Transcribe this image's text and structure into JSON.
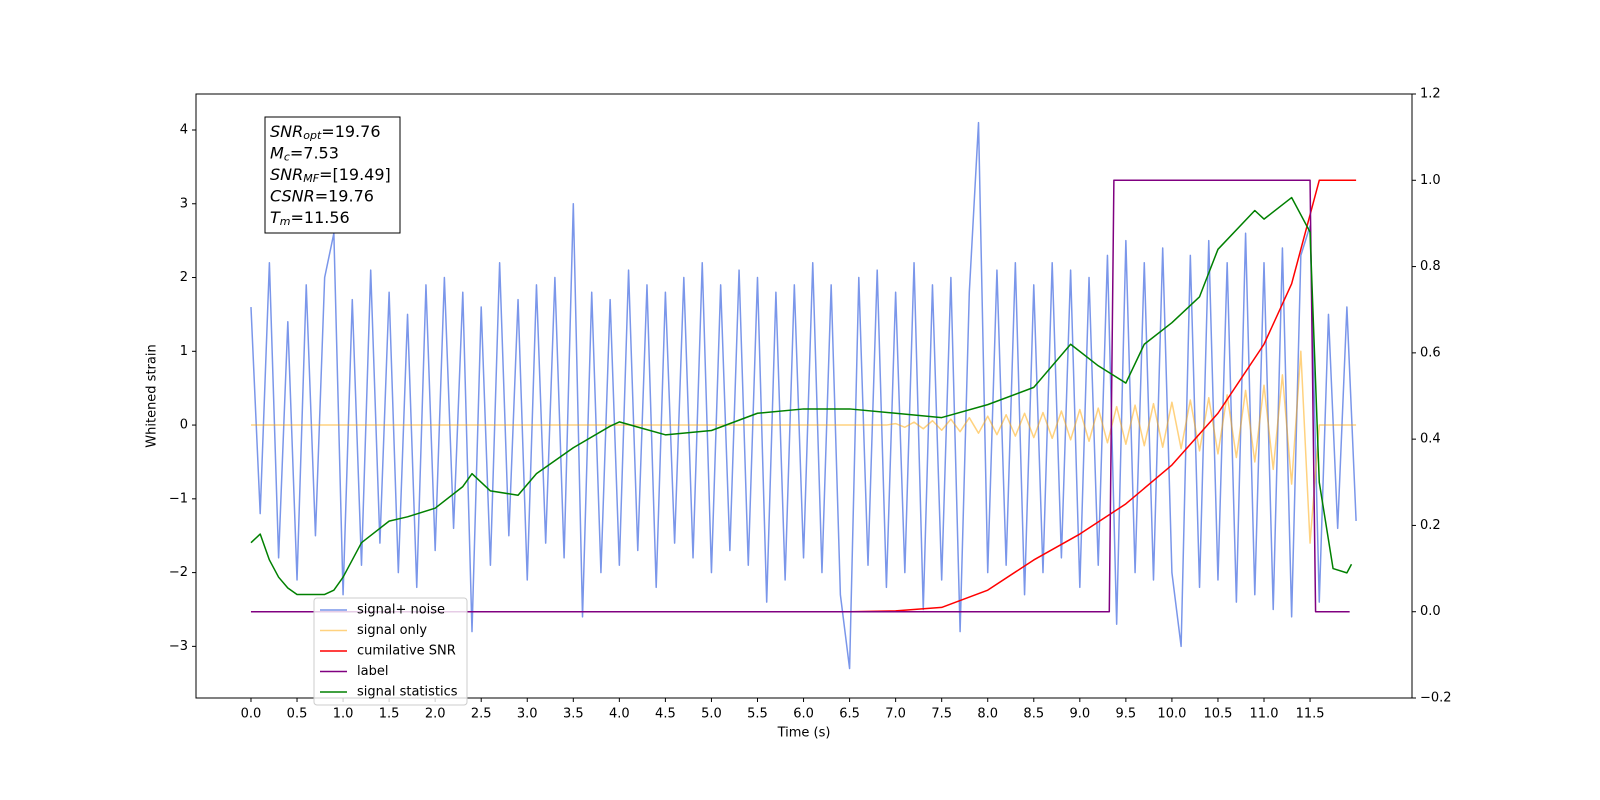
{
  "chart_data": {
    "type": "line",
    "xlabel": "Time (s)",
    "ylabel": "Whitened strain",
    "xlim": [
      -0.597,
      12.607
    ],
    "ylim": [
      -3.7,
      4.488
    ],
    "y2lim": [
      -0.2,
      1.2
    ],
    "xticks": [
      {
        "value": 0,
        "label": "0.0"
      },
      0.5,
      {
        "value": 1,
        "label": "1.0"
      },
      1.5,
      {
        "value": 2,
        "label": "2.0"
      },
      2.5,
      {
        "value": 3,
        "label": "3.0"
      },
      3.5,
      {
        "value": 4,
        "label": "4.0"
      },
      4.5,
      {
        "value": 5,
        "label": "5.0"
      },
      5.5,
      {
        "value": 6,
        "label": "6.0"
      },
      6.5,
      {
        "value": 7,
        "label": "7.0"
      },
      7.5,
      {
        "value": 8,
        "label": "8.0"
      },
      8.5,
      {
        "value": 9,
        "label": "9.0"
      },
      9.5,
      {
        "value": 10,
        "label": "10.0"
      },
      10.5,
      {
        "value": 11,
        "label": "11.0"
      },
      11.5
    ],
    "yticks": [
      {
        "value": -3,
        "label": "−3"
      },
      {
        "value": -2,
        "label": "−2"
      },
      {
        "value": -1,
        "label": "−1"
      },
      0,
      1,
      2,
      3,
      4
    ],
    "y2ticks": [
      {
        "value": -0.2,
        "label": "−0.2"
      },
      {
        "value": 0,
        "label": "0.0"
      },
      0.2,
      0.4,
      0.6,
      0.8,
      {
        "value": 1,
        "label": "1.0"
      },
      1.2
    ],
    "grid": false,
    "annotation": [
      {
        "base": "SNR",
        "sub": "opt",
        "rest": "=19.76"
      },
      {
        "base": "M",
        "sub": "c",
        "rest": "=7.53"
      },
      {
        "base": "SNR",
        "sub": "MF",
        "rest": "=[19.49]"
      },
      {
        "base": "CSNR",
        "sub": "",
        "rest": "=19.76"
      },
      {
        "base": "T",
        "sub": "m",
        "rest": "=11.56"
      }
    ],
    "series": [
      {
        "name": "signal+ noise",
        "color": "#4169e1",
        "alpha": 0.7,
        "axis": "y",
        "x": [
          0.0,
          0.1,
          0.2,
          0.3,
          0.4,
          0.5,
          0.6,
          0.7,
          0.8,
          0.9,
          1.0,
          1.1,
          1.2,
          1.3,
          1.4,
          1.5,
          1.6,
          1.7,
          1.8,
          1.9,
          2.0,
          2.1,
          2.2,
          2.3,
          2.4,
          2.5,
          2.6,
          2.7,
          2.8,
          2.9,
          3.0,
          3.1,
          3.2,
          3.3,
          3.4,
          3.5,
          3.6,
          3.7,
          3.8,
          3.9,
          4.0,
          4.1,
          4.2,
          4.3,
          4.4,
          4.5,
          4.6,
          4.7,
          4.8,
          4.9,
          5.0,
          5.1,
          5.2,
          5.3,
          5.4,
          5.5,
          5.6,
          5.7,
          5.8,
          5.9,
          6.0,
          6.1,
          6.2,
          6.3,
          6.4,
          6.5,
          6.6,
          6.7,
          6.8,
          6.9,
          7.0,
          7.1,
          7.2,
          7.3,
          7.4,
          7.5,
          7.6,
          7.7,
          7.8,
          7.9,
          8.0,
          8.1,
          8.2,
          8.3,
          8.4,
          8.5,
          8.6,
          8.7,
          8.8,
          8.9,
          9.0,
          9.1,
          9.2,
          9.3,
          9.4,
          9.5,
          9.6,
          9.7,
          9.8,
          9.9,
          10.0,
          10.1,
          10.2,
          10.3,
          10.4,
          10.5,
          10.6,
          10.7,
          10.8,
          10.9,
          11.0,
          11.1,
          11.2,
          11.3,
          11.4,
          11.5,
          11.6,
          11.7,
          11.8,
          11.9,
          12.0
        ],
        "values": [
          1.6,
          -1.2,
          2.2,
          -1.8,
          1.4,
          -2.1,
          1.9,
          -1.5,
          2.0,
          2.6,
          -2.3,
          1.7,
          -1.9,
          2.1,
          -1.6,
          1.8,
          -2.0,
          1.5,
          -2.2,
          1.9,
          -1.7,
          2.0,
          -1.4,
          1.8,
          -2.8,
          1.6,
          -1.9,
          2.2,
          -1.5,
          1.7,
          -2.1,
          1.9,
          -1.6,
          2.0,
          -1.8,
          3.0,
          -2.6,
          1.8,
          -2.0,
          1.7,
          -1.9,
          2.1,
          -1.7,
          1.9,
          -2.2,
          1.8,
          -1.6,
          2.0,
          -1.8,
          2.2,
          -2.0,
          1.9,
          -1.7,
          2.1,
          -1.9,
          2.0,
          -2.4,
          1.8,
          -2.1,
          1.9,
          -1.8,
          2.2,
          -2.0,
          1.9,
          -2.3,
          -3.3,
          2.0,
          -1.9,
          2.1,
          -2.2,
          1.8,
          -2.0,
          2.2,
          -2.5,
          1.9,
          -2.1,
          2.0,
          -2.8,
          1.8,
          4.1,
          -2.0,
          2.1,
          -1.9,
          2.2,
          -2.3,
          1.9,
          -2.0,
          2.2,
          -1.8,
          2.1,
          -2.2,
          2.0,
          -1.9,
          2.3,
          -2.7,
          2.5,
          -2.0,
          2.2,
          -2.1,
          2.4,
          -2.0,
          -3.0,
          2.3,
          -2.2,
          2.5,
          -2.1,
          2.2,
          -2.4,
          2.6,
          -2.3,
          2.2,
          -2.5,
          2.4,
          -2.6,
          2.3,
          2.7,
          -2.4,
          1.5,
          -1.4,
          1.6,
          -1.3
        ]
      },
      {
        "name": "signal only",
        "color": "#ffa500",
        "alpha": 0.5,
        "axis": "y",
        "x": [
          0.0,
          0.1,
          0.2,
          0.3,
          0.4,
          0.5,
          0.6,
          0.7,
          0.8,
          0.9,
          1.0,
          1.1,
          1.2,
          1.3,
          1.4,
          1.5,
          1.6,
          1.7,
          1.8,
          1.9,
          2.0,
          2.1,
          2.2,
          2.3,
          2.4,
          2.5,
          2.6,
          2.7,
          2.8,
          2.9,
          3.0,
          3.1,
          3.2,
          3.3,
          3.4,
          3.5,
          3.6,
          3.7,
          3.8,
          3.9,
          4.0,
          4.1,
          4.2,
          4.3,
          4.4,
          4.5,
          4.6,
          4.7,
          4.8,
          4.9,
          5.0,
          5.1,
          5.2,
          5.3,
          5.4,
          5.5,
          5.6,
          5.7,
          5.8,
          5.9,
          6.0,
          6.1,
          6.2,
          6.3,
          6.4,
          6.5,
          6.6,
          6.7,
          6.8,
          6.9,
          7.0,
          7.1,
          7.2,
          7.3,
          7.4,
          7.5,
          7.6,
          7.7,
          7.8,
          7.9,
          8.0,
          8.1,
          8.2,
          8.3,
          8.4,
          8.5,
          8.6,
          8.7,
          8.8,
          8.9,
          9.0,
          9.1,
          9.2,
          9.3,
          9.4,
          9.5,
          9.6,
          9.7,
          9.8,
          9.9,
          10.0,
          10.1,
          10.2,
          10.3,
          10.4,
          10.5,
          10.6,
          10.7,
          10.8,
          10.9,
          11.0,
          11.1,
          11.2,
          11.3,
          11.4,
          11.5,
          11.6,
          11.7,
          11.8,
          11.9,
          12.0
        ],
        "values": [
          0,
          0,
          0,
          0,
          0,
          0,
          0,
          0,
          0,
          0,
          0,
          0,
          0,
          0,
          0,
          0,
          0,
          0,
          0,
          0,
          0,
          0,
          0,
          0,
          0,
          0,
          0,
          0,
          0,
          0,
          0,
          0,
          0,
          0,
          0,
          0,
          0,
          0,
          0,
          0,
          0,
          0,
          0,
          0,
          0,
          0,
          0,
          0,
          0,
          0,
          0,
          0,
          0,
          0,
          0,
          0,
          0,
          0,
          0,
          0,
          0,
          0,
          0,
          0,
          0,
          0,
          0,
          0,
          0,
          0,
          0.02,
          -0.03,
          0.04,
          -0.05,
          0.06,
          -0.07,
          0.08,
          -0.09,
          0.1,
          -0.11,
          0.12,
          -0.13,
          0.14,
          -0.15,
          0.16,
          -0.17,
          0.17,
          -0.18,
          0.19,
          -0.2,
          0.21,
          -0.22,
          0.23,
          -0.24,
          0.25,
          -0.26,
          0.27,
          -0.28,
          0.29,
          -0.3,
          0.31,
          -0.32,
          0.34,
          -0.35,
          0.37,
          -0.39,
          0.41,
          -0.44,
          0.47,
          -0.5,
          0.54,
          -0.6,
          0.68,
          -0.8,
          1.0,
          -1.6,
          0,
          0,
          0,
          0,
          0
        ]
      },
      {
        "name": "cumilative SNR",
        "color": "#ff0000",
        "alpha": 1,
        "axis": "y2",
        "x": [
          0,
          6.5,
          7.0,
          7.5,
          8.0,
          8.5,
          9.0,
          9.5,
          10.0,
          10.5,
          11.0,
          11.3,
          11.5,
          11.6,
          12.0
        ],
        "values": [
          0,
          0,
          0.002,
          0.01,
          0.05,
          0.12,
          0.18,
          0.25,
          0.34,
          0.46,
          0.62,
          0.76,
          0.92,
          1.0,
          1.0
        ]
      },
      {
        "name": "label",
        "color": "#800080",
        "alpha": 1,
        "axis": "y2",
        "x": [
          0,
          9.32,
          9.37,
          11.5,
          11.56,
          11.93
        ],
        "values": [
          0,
          0,
          1,
          1,
          0,
          0
        ]
      },
      {
        "name": "signal statistics",
        "color": "#008000",
        "alpha": 1,
        "axis": "y2",
        "x": [
          0,
          0.1,
          0.2,
          0.3,
          0.4,
          0.5,
          0.6,
          0.8,
          0.9,
          1.0,
          1.1,
          1.2,
          1.5,
          1.7,
          2.0,
          2.3,
          2.4,
          2.6,
          2.9,
          3.1,
          3.5,
          3.9,
          4.0,
          4.5,
          5.0,
          5.5,
          6.0,
          6.5,
          7.0,
          7.5,
          8.0,
          8.5,
          8.9,
          9.2,
          9.5,
          9.7,
          10.0,
          10.3,
          10.5,
          10.9,
          11.0,
          11.3,
          11.5,
          11.6,
          11.75,
          11.9,
          11.95
        ],
        "values": [
          0.16,
          0.18,
          0.12,
          0.08,
          0.055,
          0.04,
          0.04,
          0.04,
          0.05,
          0.08,
          0.12,
          0.16,
          0.21,
          0.22,
          0.24,
          0.29,
          0.32,
          0.28,
          0.27,
          0.32,
          0.38,
          0.43,
          0.44,
          0.41,
          0.42,
          0.46,
          0.47,
          0.47,
          0.46,
          0.45,
          0.48,
          0.52,
          0.62,
          0.57,
          0.53,
          0.62,
          0.67,
          0.73,
          0.84,
          0.93,
          0.91,
          0.96,
          0.88,
          0.3,
          0.1,
          0.09,
          0.11
        ]
      }
    ]
  }
}
